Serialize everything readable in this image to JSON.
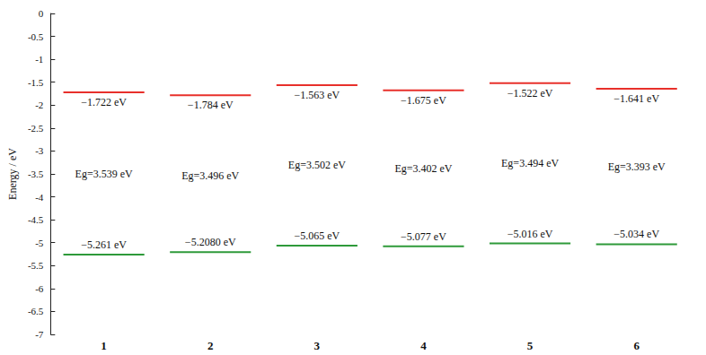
{
  "chart_data": {
    "type": "energy_level",
    "y_label": "Energy / eV",
    "categories": [
      "1",
      "2",
      "3",
      "4",
      "5",
      "6"
    ],
    "ylim": [
      -7,
      0
    ],
    "yticks": [
      -7,
      -6.5,
      -6,
      -5.5,
      -5,
      -4.5,
      -4,
      -3.5,
      -3,
      -2.5,
      -2,
      -1.5,
      -1,
      -0.5,
      0
    ],
    "grid": false,
    "series": [
      {
        "color": "#e8302b",
        "values": [
          -1.722,
          -1.784,
          -1.563,
          -1.675,
          -1.522,
          -1.641
        ],
        "value_labels": [
          "−1.722 eV",
          "−1.784 eV",
          "−1.563 eV",
          "−1.675 eV",
          "−1.522 eV",
          "−1.641 eV"
        ]
      },
      {
        "color": "#2e9a3a",
        "values": [
          -5.261,
          -5.208,
          -5.065,
          -5.077,
          -5.016,
          -5.034
        ],
        "value_labels": [
          "−5.261 eV",
          "−5.2080 eV",
          "−5.065 eV",
          "−5.077 eV",
          "−5.016 eV",
          "−5.034 eV"
        ]
      }
    ],
    "energy_gaps": {
      "values": [
        3.539,
        3.496,
        3.502,
        3.402,
        3.494,
        3.393
      ],
      "value_labels": [
        "Eg=3.539 eV",
        "Eg=3.496 eV",
        "Eg=3.502 eV",
        "Eg=3.402 eV",
        "Eg=3.494 eV",
        "Eg=3.393 eV"
      ]
    }
  }
}
